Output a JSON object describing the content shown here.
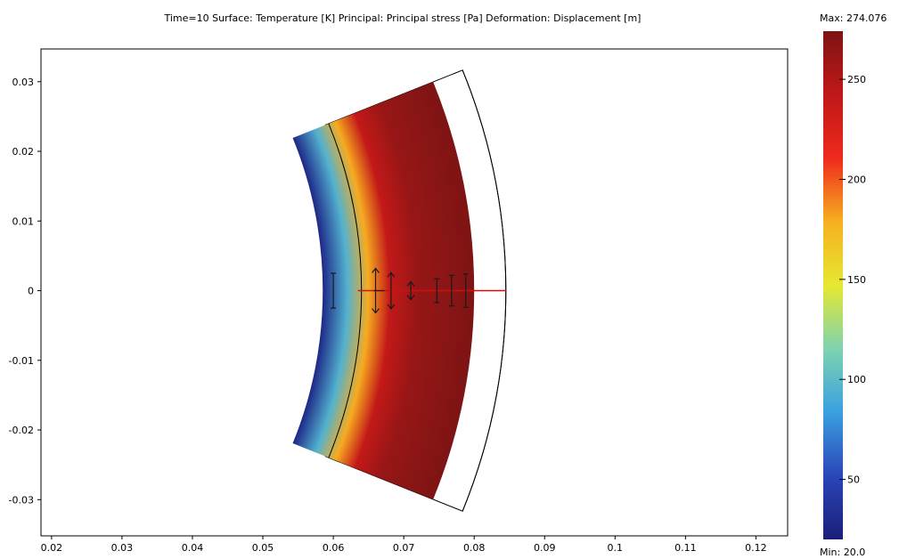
{
  "chart_data": {
    "type": "heatmap",
    "title": "Time=10   Surface: Temperature [K]   Principal: Principal stress [Pa]   Deformation: Displacement [m]",
    "x_ticks": [
      "0.02",
      "0.03",
      "0.04",
      "0.05",
      "0.06",
      "0.07",
      "0.08",
      "0.09",
      "0.1",
      "0.11",
      "0.12"
    ],
    "y_ticks": [
      "0.03",
      "0.02",
      "0.01",
      "0",
      "-0.01",
      "-0.02",
      "-0.03"
    ],
    "x_values": [
      0.02,
      0.03,
      0.04,
      0.05,
      0.06,
      0.07,
      0.08,
      0.09,
      0.1,
      0.11,
      0.12
    ],
    "y_values": [
      0.03,
      0.02,
      0.01,
      0,
      -0.01,
      -0.02,
      -0.03
    ],
    "xlim": [
      0.0185,
      0.1245
    ],
    "ylim": [
      -0.0352,
      0.0347
    ],
    "grid": false,
    "colorbar": {
      "max_label": "Max: 274.076",
      "min_label": "Min: 20.0",
      "min": 20.0,
      "max": 274.076,
      "ticks": [
        "250",
        "200",
        "150",
        "100",
        "50"
      ],
      "tick_values": [
        250,
        200,
        150,
        100,
        50
      ],
      "colormap": [
        "#1a1e78",
        "#2a46b8",
        "#3aa0e0",
        "#7ed3b0",
        "#e6e830",
        "#f6b020",
        "#ee2a1c",
        "#c01818",
        "#7e1414"
      ]
    },
    "geometry": {
      "original_inner_radius": 0.0635,
      "original_outer_radius": 0.0845,
      "deformed_inner_radius": 0.0585,
      "deformed_outer_radius": 0.08,
      "half_angle_deg": 22
    },
    "temperature_profile": {
      "radius": [
        0.0585,
        0.062,
        0.065,
        0.068,
        0.072,
        0.08
      ],
      "value": [
        28,
        95,
        180,
        240,
        262,
        274
      ]
    },
    "radial_line_color": "#d01010"
  }
}
